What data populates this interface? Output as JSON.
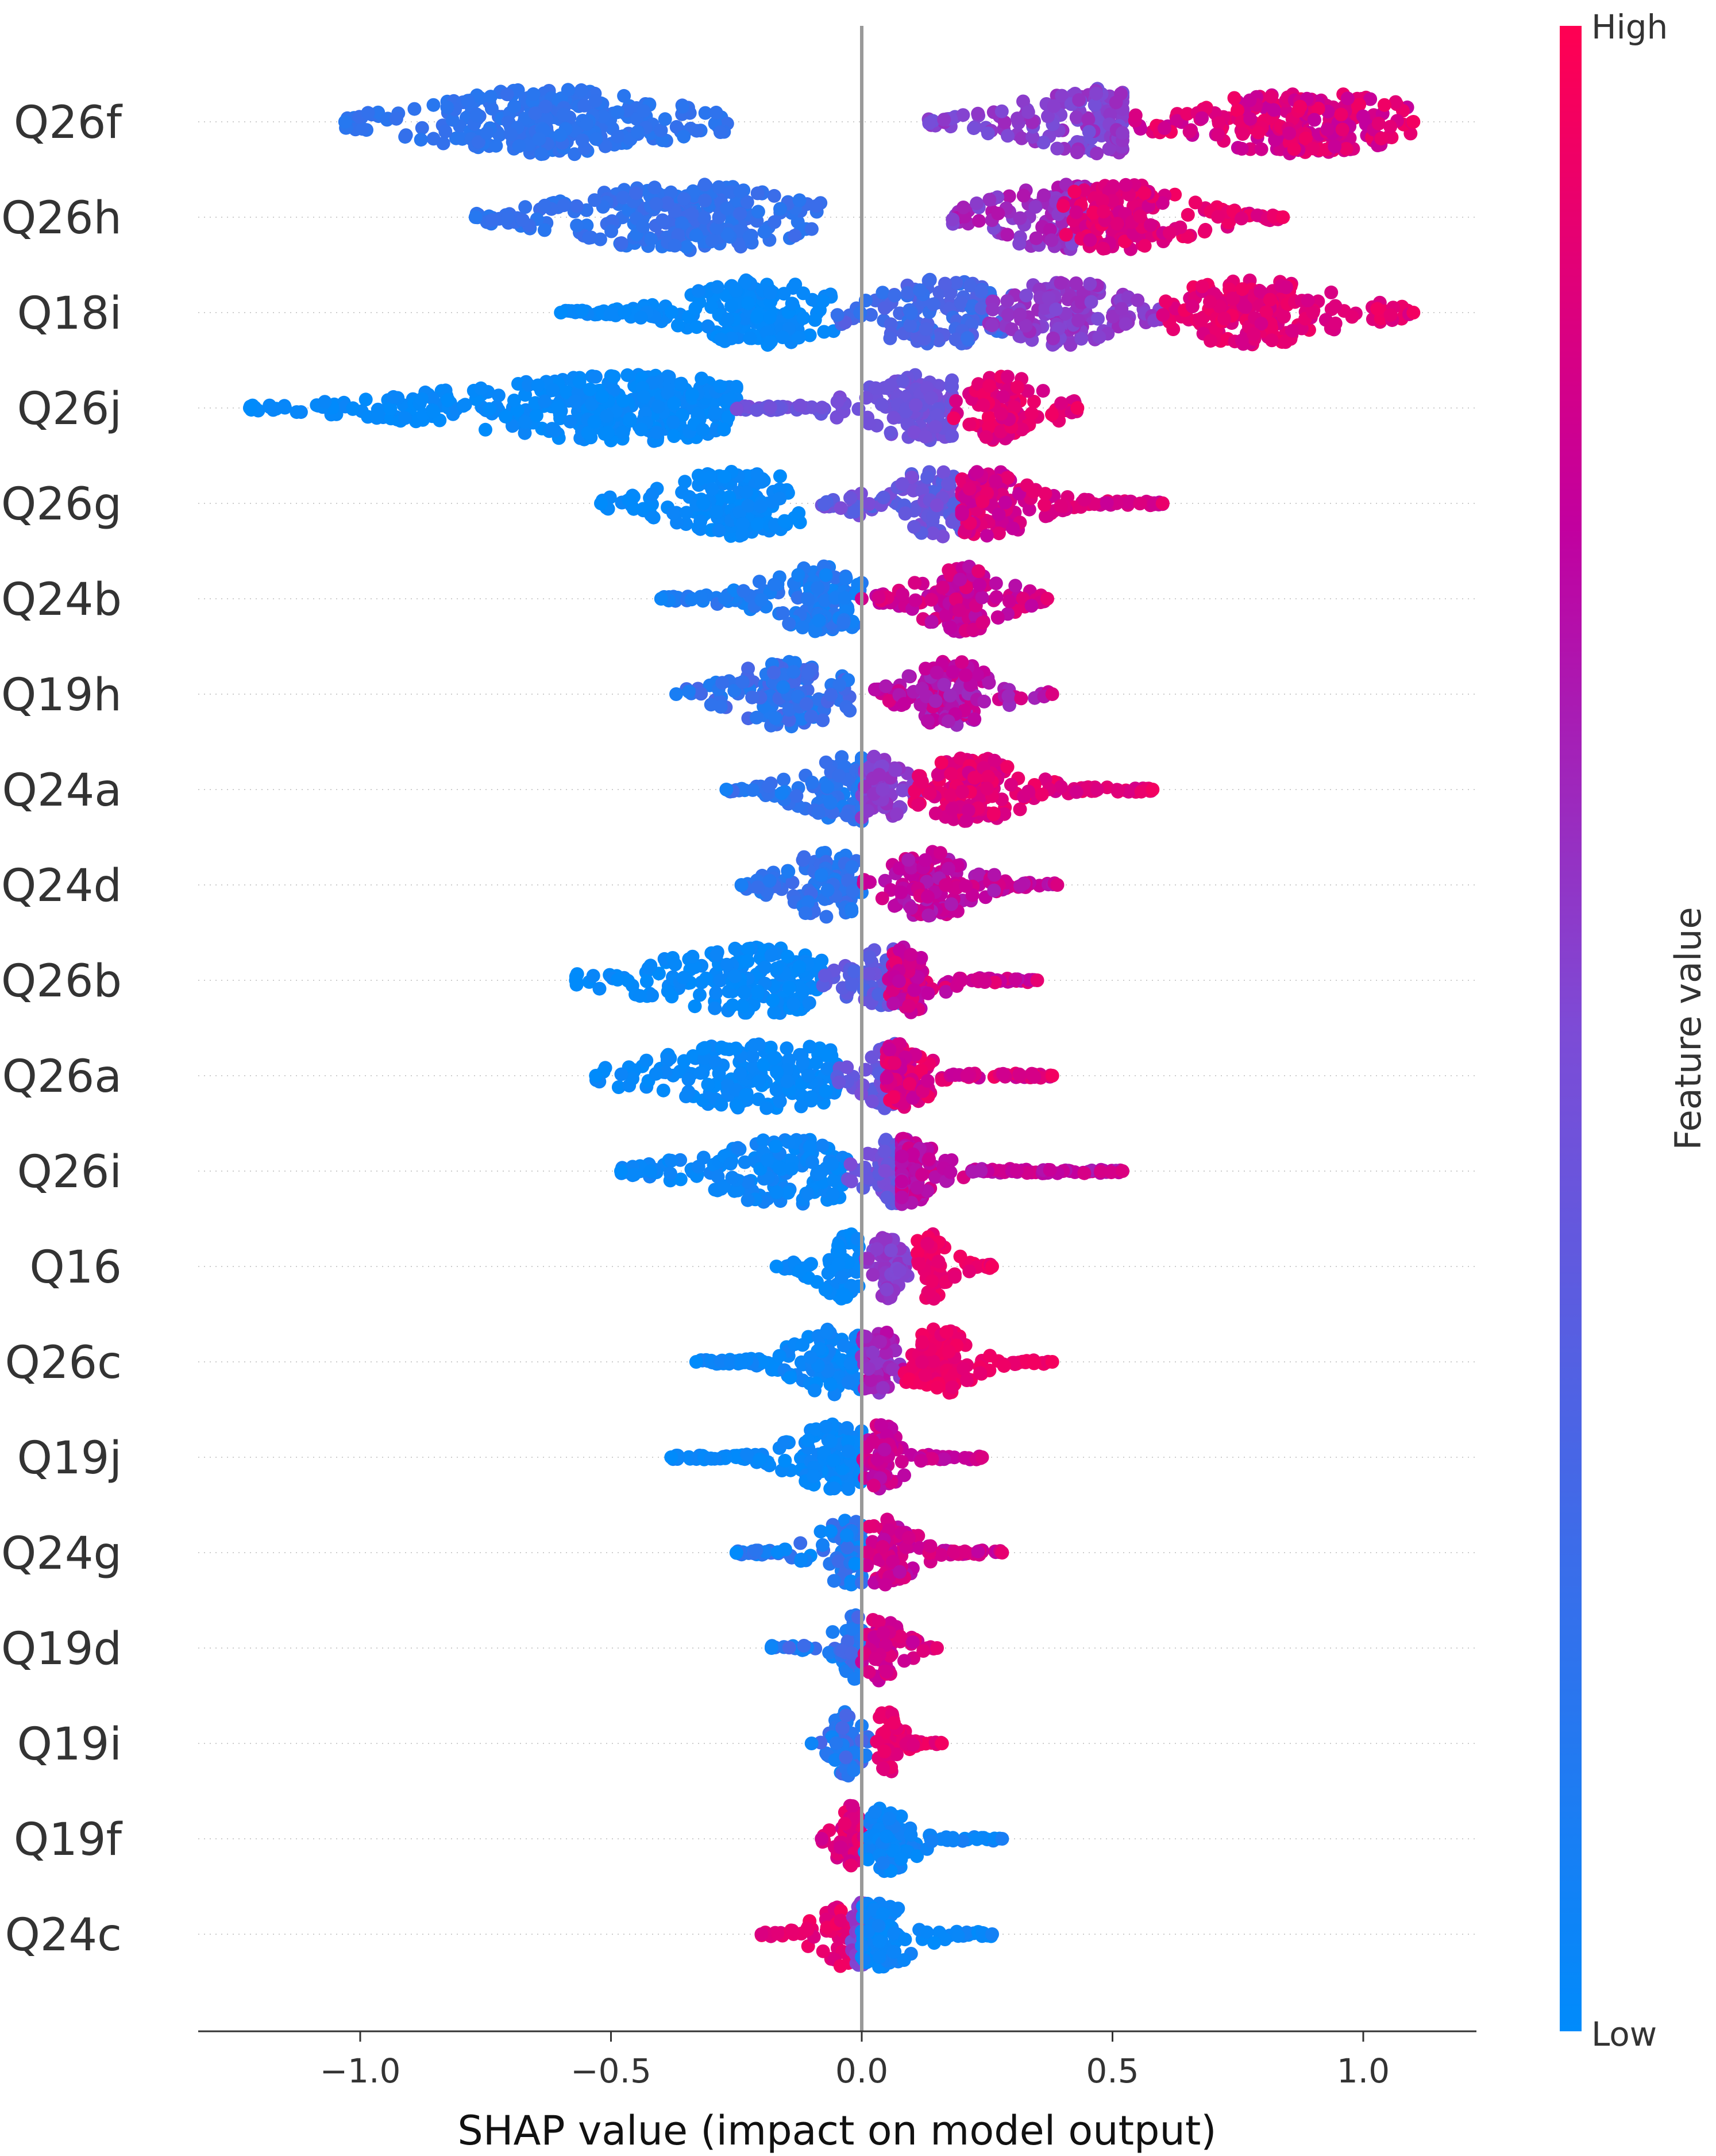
{
  "chart_data": {
    "type": "scatter",
    "subtype": "shap-beeswarm",
    "title": "",
    "xlabel": "SHAP value (impact on model output)",
    "ylabel": "",
    "xlim": [
      -1.32,
      1.22
    ],
    "xticks": [
      -1.0,
      -0.5,
      0.0,
      0.5,
      1.0
    ],
    "xtick_labels": [
      "−1.0",
      "−0.5",
      "0.0",
      "0.5",
      "1.0"
    ],
    "colorbar": {
      "title": "Feature value",
      "high_label": "High",
      "low_label": "Low",
      "low_color": "#008bfb",
      "high_color": "#ff0052"
    },
    "features": [
      {
        "name": "Q26f",
        "min": -1.03,
        "max": 1.1,
        "groups": [
          {
            "start": -1.03,
            "end": -0.25,
            "color_low": 0.15,
            "color_high": 0.22,
            "peak": -0.62,
            "spread": 0.17
          },
          {
            "start": 0.13,
            "end": 0.52,
            "color_low": 0.45,
            "color_high": 0.62,
            "peak": 0.48,
            "spread": 0.12
          },
          {
            "start": 0.52,
            "end": 1.1,
            "color_low": 0.75,
            "color_high": 0.95,
            "peak": 0.87,
            "spread": 0.14
          }
        ]
      },
      {
        "name": "Q26h",
        "min": -0.77,
        "max": 0.84,
        "groups": [
          {
            "start": -0.77,
            "end": -0.07,
            "color_low": 0.15,
            "color_high": 0.25,
            "peak": -0.35,
            "spread": 0.16
          },
          {
            "start": 0.18,
            "end": 0.5,
            "color_low": 0.5,
            "color_high": 0.7,
            "peak": 0.4,
            "spread": 0.1
          },
          {
            "start": 0.4,
            "end": 0.84,
            "color_low": 0.8,
            "color_high": 0.95,
            "peak": 0.52,
            "spread": 0.1
          }
        ]
      },
      {
        "name": "Q18i",
        "min": -0.6,
        "max": 1.1,
        "groups": [
          {
            "start": -0.6,
            "end": -0.05,
            "color_low": 0.0,
            "color_high": 0.05,
            "peak": -0.2,
            "spread": 0.1
          },
          {
            "start": -0.05,
            "end": 0.3,
            "color_low": 0.18,
            "color_high": 0.35,
            "peak": 0.15,
            "spread": 0.1
          },
          {
            "start": 0.25,
            "end": 0.62,
            "color_low": 0.5,
            "color_high": 0.62,
            "peak": 0.4,
            "spread": 0.08
          },
          {
            "start": 0.6,
            "end": 1.1,
            "color_low": 0.82,
            "color_high": 0.95,
            "peak": 0.78,
            "spread": 0.12
          }
        ]
      },
      {
        "name": "Q26j",
        "min": -1.22,
        "max": 0.43,
        "groups": [
          {
            "start": -1.22,
            "end": -0.25,
            "color_low": 0.0,
            "color_high": 0.05,
            "peak": -0.45,
            "spread": 0.25
          },
          {
            "start": -0.25,
            "end": 0.18,
            "color_low": 0.4,
            "color_high": 0.5,
            "peak": 0.12,
            "spread": 0.08
          },
          {
            "start": 0.18,
            "end": 0.43,
            "color_low": 0.82,
            "color_high": 0.95,
            "peak": 0.28,
            "spread": 0.06
          }
        ]
      },
      {
        "name": "Q26g",
        "min": -0.52,
        "max": 0.6,
        "groups": [
          {
            "start": -0.52,
            "end": -0.12,
            "color_low": 0.0,
            "color_high": 0.05,
            "peak": -0.25,
            "spread": 0.1
          },
          {
            "start": -0.08,
            "end": 0.22,
            "color_low": 0.3,
            "color_high": 0.5,
            "peak": 0.15,
            "spread": 0.08
          },
          {
            "start": 0.2,
            "end": 0.6,
            "color_low": 0.75,
            "color_high": 0.92,
            "peak": 0.25,
            "spread": 0.07
          }
        ]
      },
      {
        "name": "Q24b",
        "min": -0.4,
        "max": 0.37,
        "groups": [
          {
            "start": -0.4,
            "end": 0.0,
            "color_low": 0.05,
            "color_high": 0.2,
            "peak": -0.08,
            "spread": 0.08
          },
          {
            "start": 0.0,
            "end": 0.37,
            "color_low": 0.7,
            "color_high": 0.9,
            "peak": 0.2,
            "spread": 0.06
          }
        ]
      },
      {
        "name": "Q19h",
        "min": -0.37,
        "max": 0.38,
        "groups": [
          {
            "start": -0.37,
            "end": -0.02,
            "color_low": 0.1,
            "color_high": 0.3,
            "peak": -0.15,
            "spread": 0.08
          },
          {
            "start": 0.02,
            "end": 0.38,
            "color_low": 0.6,
            "color_high": 0.85,
            "peak": 0.18,
            "spread": 0.06
          }
        ]
      },
      {
        "name": "Q24a",
        "min": -0.27,
        "max": 0.58,
        "groups": [
          {
            "start": -0.27,
            "end": 0.0,
            "color_low": 0.08,
            "color_high": 0.25,
            "peak": -0.03,
            "spread": 0.07
          },
          {
            "start": 0.0,
            "end": 0.12,
            "color_low": 0.5,
            "color_high": 0.6,
            "peak": 0.03,
            "spread": 0.04
          },
          {
            "start": 0.1,
            "end": 0.58,
            "color_low": 0.8,
            "color_high": 0.95,
            "peak": 0.22,
            "spread": 0.07
          }
        ]
      },
      {
        "name": "Q24d",
        "min": -0.24,
        "max": 0.39,
        "groups": [
          {
            "start": -0.24,
            "end": 0.0,
            "color_low": 0.1,
            "color_high": 0.25,
            "peak": -0.07,
            "spread": 0.06
          },
          {
            "start": 0.0,
            "end": 0.39,
            "color_low": 0.65,
            "color_high": 0.85,
            "peak": 0.14,
            "spread": 0.06
          }
        ]
      },
      {
        "name": "Q26b",
        "min": -0.57,
        "max": 0.35,
        "groups": [
          {
            "start": -0.57,
            "end": -0.08,
            "color_low": 0.0,
            "color_high": 0.05,
            "peak": -0.2,
            "spread": 0.15
          },
          {
            "start": -0.08,
            "end": 0.08,
            "color_low": 0.3,
            "color_high": 0.45,
            "peak": 0.05,
            "spread": 0.05
          },
          {
            "start": 0.05,
            "end": 0.35,
            "color_low": 0.7,
            "color_high": 0.9,
            "peak": 0.09,
            "spread": 0.04
          }
        ]
      },
      {
        "name": "Q26a",
        "min": -0.53,
        "max": 0.38,
        "groups": [
          {
            "start": -0.53,
            "end": -0.05,
            "color_low": 0.0,
            "color_high": 0.05,
            "peak": -0.2,
            "spread": 0.15
          },
          {
            "start": -0.05,
            "end": 0.08,
            "color_low": 0.35,
            "color_high": 0.5,
            "peak": 0.05,
            "spread": 0.04
          },
          {
            "start": 0.05,
            "end": 0.38,
            "color_low": 0.75,
            "color_high": 0.95,
            "peak": 0.08,
            "spread": 0.04
          }
        ]
      },
      {
        "name": "Q26i",
        "min": -0.48,
        "max": 0.52,
        "groups": [
          {
            "start": -0.48,
            "end": -0.03,
            "color_low": 0.0,
            "color_high": 0.08,
            "peak": -0.15,
            "spread": 0.12
          },
          {
            "start": -0.03,
            "end": 0.1,
            "color_low": 0.35,
            "color_high": 0.5,
            "peak": 0.06,
            "spread": 0.04
          },
          {
            "start": 0.08,
            "end": 0.52,
            "color_low": 0.65,
            "color_high": 0.85,
            "peak": 0.08,
            "spread": 0.05
          }
        ]
      },
      {
        "name": "Q16",
        "min": -0.17,
        "max": 0.26,
        "groups": [
          {
            "start": -0.17,
            "end": 0.0,
            "color_low": 0.0,
            "color_high": 0.05,
            "peak": -0.03,
            "spread": 0.04
          },
          {
            "start": 0.0,
            "end": 0.1,
            "color_low": 0.5,
            "color_high": 0.6,
            "peak": 0.05,
            "spread": 0.02
          },
          {
            "start": 0.1,
            "end": 0.26,
            "color_low": 0.88,
            "color_high": 0.96,
            "peak": 0.14,
            "spread": 0.03
          }
        ]
      },
      {
        "name": "Q26c",
        "min": -0.33,
        "max": 0.38,
        "groups": [
          {
            "start": -0.33,
            "end": 0.0,
            "color_low": 0.0,
            "color_high": 0.08,
            "peak": -0.05,
            "spread": 0.06
          },
          {
            "start": 0.0,
            "end": 0.1,
            "color_low": 0.55,
            "color_high": 0.75,
            "peak": 0.03,
            "spread": 0.03
          },
          {
            "start": 0.08,
            "end": 0.38,
            "color_low": 0.88,
            "color_high": 0.96,
            "peak": 0.15,
            "spread": 0.05
          }
        ]
      },
      {
        "name": "Q19j",
        "min": -0.38,
        "max": 0.24,
        "groups": [
          {
            "start": -0.38,
            "end": 0.0,
            "color_low": 0.0,
            "color_high": 0.06,
            "peak": -0.05,
            "spread": 0.06
          },
          {
            "start": 0.0,
            "end": 0.24,
            "color_low": 0.7,
            "color_high": 0.85,
            "peak": 0.04,
            "spread": 0.03
          }
        ]
      },
      {
        "name": "Q24g",
        "min": -0.25,
        "max": 0.28,
        "groups": [
          {
            "start": -0.25,
            "end": 0.0,
            "color_low": 0.0,
            "color_high": 0.25,
            "peak": -0.02,
            "spread": 0.05
          },
          {
            "start": 0.0,
            "end": 0.28,
            "color_low": 0.7,
            "color_high": 0.9,
            "peak": 0.05,
            "spread": 0.04
          }
        ]
      },
      {
        "name": "Q19d",
        "min": -0.18,
        "max": 0.15,
        "groups": [
          {
            "start": -0.18,
            "end": 0.0,
            "color_low": 0.05,
            "color_high": 0.3,
            "peak": -0.01,
            "spread": 0.03
          },
          {
            "start": 0.0,
            "end": 0.15,
            "color_low": 0.75,
            "color_high": 0.9,
            "peak": 0.04,
            "spread": 0.03
          }
        ]
      },
      {
        "name": "Q19i",
        "min": -0.1,
        "max": 0.16,
        "groups": [
          {
            "start": -0.1,
            "end": 0.02,
            "color_low": 0.05,
            "color_high": 0.3,
            "peak": -0.03,
            "spread": 0.02
          },
          {
            "start": 0.02,
            "end": 0.16,
            "color_low": 0.85,
            "color_high": 0.95,
            "peak": 0.05,
            "spread": 0.02
          }
        ]
      },
      {
        "name": "Q19f",
        "min": -0.08,
        "max": 0.28,
        "groups": [
          {
            "start": -0.08,
            "end": 0.02,
            "color_low": 0.8,
            "color_high": 0.95,
            "peak": -0.02,
            "spread": 0.02
          },
          {
            "start": 0.0,
            "end": 0.28,
            "color_low": 0.0,
            "color_high": 0.1,
            "peak": 0.05,
            "spread": 0.04
          }
        ]
      },
      {
        "name": "Q24c",
        "min": -0.2,
        "max": 0.26,
        "groups": [
          {
            "start": -0.2,
            "end": 0.0,
            "color_low": 0.85,
            "color_high": 0.96,
            "peak": -0.03,
            "spread": 0.04
          },
          {
            "start": -0.02,
            "end": 0.04,
            "color_low": 0.45,
            "color_high": 0.6,
            "peak": 0.0,
            "spread": 0.02
          },
          {
            "start": 0.0,
            "end": 0.26,
            "color_low": 0.0,
            "color_high": 0.08,
            "peak": 0.04,
            "spread": 0.05
          }
        ]
      }
    ]
  }
}
